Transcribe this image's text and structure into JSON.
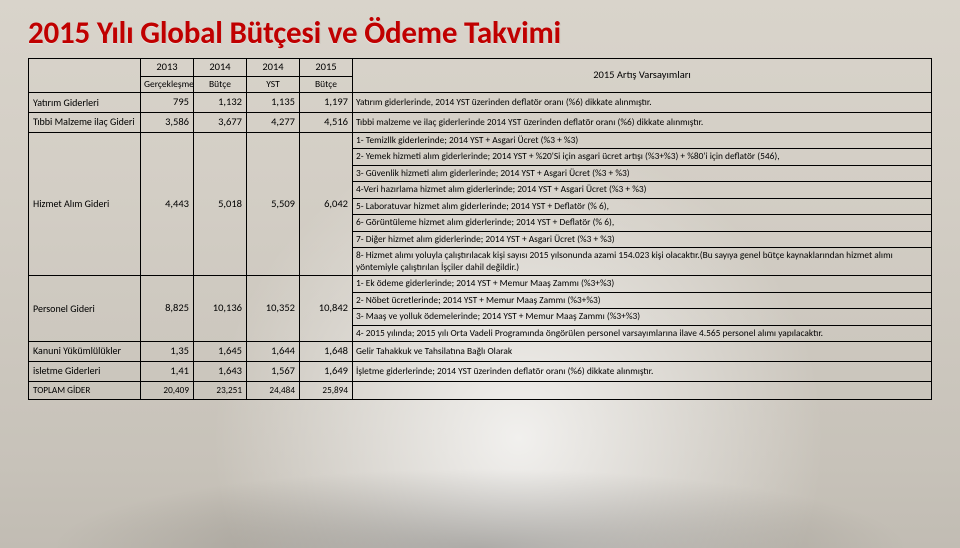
{
  "title": "2015 Yılı Global Bütçesi ve Ödeme Takvimi",
  "headers": {
    "col13": "2013",
    "col14a": "2014",
    "col14b": "2014",
    "col15": "2015",
    "sub13": "Gerçekleşme",
    "sub14a": "Bütçe",
    "sub14b": "YST",
    "sub15": "Bütçe",
    "right": "2015 Artış Varsayımları"
  },
  "rows": {
    "yatirim": {
      "label": "Yatırım Giderleri",
      "v13": "795",
      "v14a": "1,132",
      "v14b": "1,135",
      "v15": "1,197",
      "note": "Yatırım giderlerinde, 2014 YST üzerinden deflatör oranı (%6) dikkate alınmıştır."
    },
    "tibbi": {
      "label": "Tıbbi Malzeme ilaç Gideri",
      "v13": "3,586",
      "v14a": "3,677",
      "v14b": "4,277",
      "v15": "4,516",
      "note": "Tıbbi malzeme ve ilaç giderlerinde 2014 YST üzerinden deflatör oranı (%6) dikkate alınmıştır."
    },
    "hizmet": {
      "label": "Hizmet Alım Gideri",
      "v13": "4,443",
      "v14a": "5,018",
      "v14b": "5,509",
      "v15": "6,042",
      "n1": "1-      Temizllk giderlerinde; 2014 YST + Asgari Ücret (%3 + %3)",
      "n2": "2- Yemek hizmeti alım giderlerinde; 2014 YST + %20'Si için asgari ücret artışı (%3+%3) + %80'i için deflatör (546),",
      "n3": "3-  Güvenlik hizmeti alım giderlerinde; 2014 YST + Asgari Ücret (%3 + %3)",
      "n4": "4-Veri hazırlama hizmet alım giderlerinde; 2014 YST + Asgari Ücret (%3 + %3)",
      "n5": "5- Laboratuvar hizmet alım giderlerinde; 2014 YST + Deflatör (% 6),",
      "n6": "6- Görüntüleme hizmet alım giderlerinde; 2014 YST + Deflatör (% 6),",
      "n7": "7- Diğer hizmet alım giderlerinde; 2014 YST + Asgari Ücret (%3 + %3)",
      "n8": "8- Hizmet alımı yoluyla çalıştırılacak kişi sayısı 2015 yılsonunda azami 154.023 kişi olacaktır.(Bu sayıya genel bütçe kaynaklarından hizmet alımı yöntemiyle çalıştırılan İşçiler dahil değildir.)"
    },
    "personel": {
      "label": "Personel Gideri",
      "v13": "8,825",
      "v14a": "10,136",
      "v14b": "10,352",
      "v15": "10,842",
      "n1": "1- Ek ödeme giderlerinde; 2014 YST + Memur Maaş Zammı (%3+%3)",
      "n2": "2- Nöbet ücretlerinde; 2014 YST + Memur Maaş Zammı (%3+%3)",
      "n3": "3- Maaş ve yolluk ödemelerinde; 2014 YST + Memur Maaş Zammı (%3+%3)",
      "n4": "4- 2015 yılında; 2015 yılı Orta Vadeli Programında öngörülen personel varsayımlarına ilave 4.565 personel alımı yapılacaktır."
    },
    "kanuni": {
      "label": "Kanuni Yükümlülükler",
      "v13": "1,35",
      "v14a": "1,645",
      "v14b": "1,644",
      "v15": "1,648",
      "note": "Gelir Tahakkuk ve Tahsilatına Bağlı Olarak"
    },
    "isletme": {
      "label": "isletme Giderleri",
      "v13": "1,41",
      "v14a": "1,643",
      "v14b": "1,567",
      "v15": "1,649",
      "note": "İşletme giderlerinde; 2014 YST üzerinden deflatör oranı (%6) dikkate alınmıştır."
    },
    "toplam": {
      "label": "TOPLAM GİDER",
      "v13": "20,409",
      "v14a": "23,251",
      "v14b": "24,484",
      "v15": "25,894"
    }
  },
  "colors": {
    "title": "#c00000",
    "border": "#000000"
  }
}
